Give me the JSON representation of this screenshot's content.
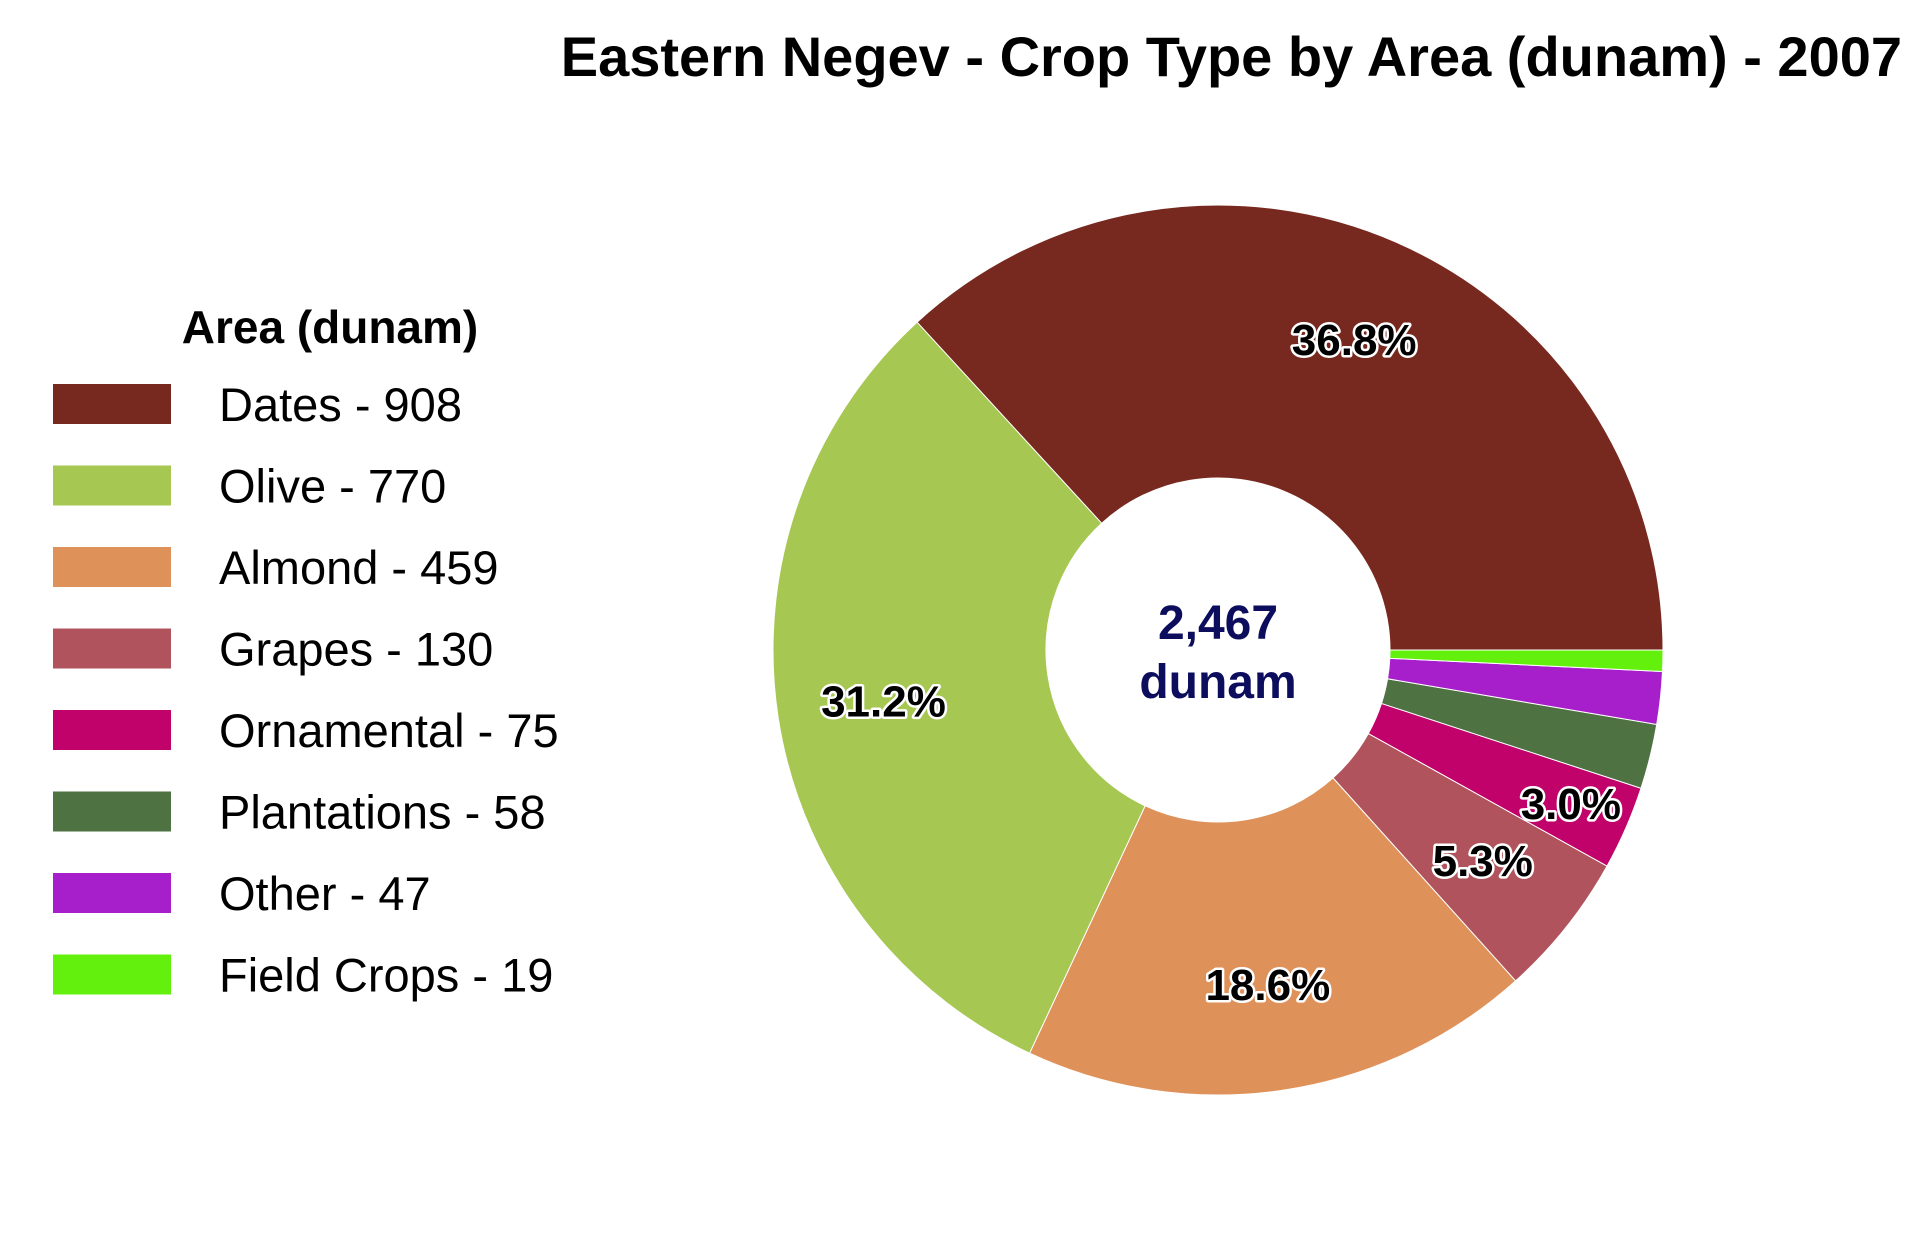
{
  "chart_data": {
    "type": "pie",
    "title": "Eastern Negev - Crop Type by Area (dunam) - 2007",
    "legend_title": "Area (dunam)",
    "legend_position": "left",
    "center_label": {
      "value": "2,467",
      "unit": "dunam"
    },
    "slices": [
      {
        "name": "Dates",
        "value": 908,
        "legend_label": "Dates - 908",
        "color": "#78291f",
        "pct_label": "36.8%"
      },
      {
        "name": "Olive",
        "value": 770,
        "legend_label": "Olive - 770",
        "color": "#a6c751",
        "pct_label": "31.2%"
      },
      {
        "name": "Almond",
        "value": 459,
        "legend_label": "Almond - 459",
        "color": "#df915a",
        "pct_label": "18.6%"
      },
      {
        "name": "Grapes",
        "value": 130,
        "legend_label": "Grapes - 130",
        "color": "#b0535c",
        "pct_label": "5.3%"
      },
      {
        "name": "Ornamental",
        "value": 75,
        "legend_label": "Ornamental - 75",
        "color": "#c0026a",
        "pct_label": "3.0%"
      },
      {
        "name": "Plantations",
        "value": 58,
        "legend_label": "Plantations - 58",
        "color": "#4f7243",
        "pct_label": ""
      },
      {
        "name": "Other",
        "value": 47,
        "legend_label": "Other - 47",
        "color": "#a71ecb",
        "pct_label": ""
      },
      {
        "name": "Field Crops",
        "value": 19,
        "legend_label": "Field Crops - 19",
        "color": "#63f00d",
        "pct_label": ""
      }
    ]
  }
}
